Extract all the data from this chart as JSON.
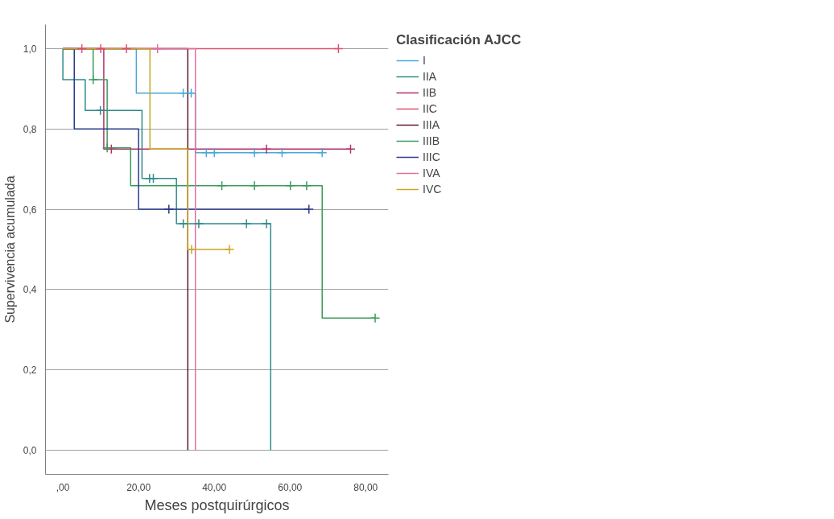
{
  "chart_data": {
    "type": "step",
    "xlabel": "Meses postquirúrgicos",
    "ylabel": "Supervivencia acumulada",
    "legend_title": "Clasificación AJCC",
    "legend": "right",
    "grid": "y",
    "xlim": [
      -4.6,
      86
    ],
    "ylim": [
      -0.06,
      1.06
    ],
    "xticks": [
      {
        "value": 0,
        "label": ",00"
      },
      {
        "value": 20,
        "label": "20,00"
      },
      {
        "value": 40,
        "label": "40,00"
      },
      {
        "value": 60,
        "label": "60,00"
      },
      {
        "value": 80,
        "label": "80,00"
      }
    ],
    "yticks": [
      {
        "value": 0,
        "label": "0,0"
      },
      {
        "value": 0.2,
        "label": "0,2"
      },
      {
        "value": 0.4,
        "label": "0,4"
      },
      {
        "value": 0.6,
        "label": "0,6"
      },
      {
        "value": 0.8,
        "label": "0,8"
      },
      {
        "value": 1,
        "label": "1,0"
      }
    ],
    "series": [
      {
        "name": "I",
        "color": "#4aa8d8",
        "x": [
          0,
          19.4,
          35,
          68.5
        ],
        "values": [
          1,
          0.889,
          0.741,
          0.741
        ]
      },
      {
        "name": "IIA",
        "color": "#2e8a8a",
        "x": [
          0,
          0,
          5.9,
          20.9,
          30,
          54.9
        ],
        "values": [
          1,
          0.923,
          0.846,
          0.677,
          0.564,
          0
        ]
      },
      {
        "name": "IIB",
        "color": "#b0306a",
        "x": [
          0,
          10.8,
          76
        ],
        "values": [
          1,
          0.75,
          0.75
        ]
      },
      {
        "name": "IIC",
        "color": "#e05070",
        "x": [
          0,
          72.8
        ],
        "values": [
          1,
          1
        ]
      },
      {
        "name": "IIIA",
        "color": "#5a1a30",
        "x": [
          0,
          33
        ],
        "values": [
          1,
          0
        ]
      },
      {
        "name": "IIIB",
        "color": "#3a9a5a",
        "x": [
          0,
          8,
          11.7,
          17.9,
          68.5,
          82.5
        ],
        "values": [
          1,
          0.923,
          0.753,
          0.659,
          0.329,
          0.329
        ]
      },
      {
        "name": "IIIC",
        "color": "#2a3a8a",
        "x": [
          0,
          3,
          20,
          65
        ],
        "values": [
          1,
          0.8,
          0.6,
          0.6
        ]
      },
      {
        "name": "IVA",
        "color": "#e070a0",
        "x": [
          0,
          35
        ],
        "values": [
          1,
          0
        ]
      },
      {
        "name": "IVC",
        "color": "#c8a820",
        "x": [
          0,
          23,
          33,
          44
        ],
        "values": [
          1,
          0.75,
          0.5,
          0.5
        ]
      },
      {
        "type": "scatter",
        "marker": "cross",
        "color": "#4aa8d8",
        "x": [
          31.8,
          33.9,
          37.9,
          40,
          50.6,
          57.9,
          68.5
        ],
        "values": [
          0.889,
          0.889,
          0.741,
          0.741,
          0.741,
          0.741,
          0.741
        ]
      },
      {
        "type": "scatter",
        "marker": "cross",
        "color": "#2e8a8a",
        "x": [
          9.9,
          22.9,
          23.9,
          31.8,
          35.9,
          48.5,
          53.8
        ],
        "values": [
          0.846,
          0.677,
          0.677,
          0.564,
          0.564,
          0.564,
          0.564
        ]
      },
      {
        "type": "scatter",
        "marker": "cross",
        "color": "#b0306a",
        "x": [
          12.8,
          53.8,
          76
        ],
        "values": [
          0.75,
          0.75,
          0.75
        ]
      },
      {
        "type": "scatter",
        "marker": "cross",
        "color": "#e05070",
        "x": [
          5,
          10,
          16.8,
          72.8
        ],
        "values": [
          1,
          1,
          1,
          1
        ]
      },
      {
        "type": "scatter",
        "marker": "cross",
        "color": "#3a9a5a",
        "x": [
          8,
          11.7,
          42,
          50.6,
          60.1,
          64.4,
          82.5
        ],
        "values": [
          0.923,
          0.753,
          0.659,
          0.659,
          0.659,
          0.659,
          0.329
        ]
      },
      {
        "type": "scatter",
        "marker": "cross",
        "color": "#2a3a8a",
        "x": [
          28,
          65
        ],
        "values": [
          0.6,
          0.6
        ]
      },
      {
        "type": "scatter",
        "marker": "cross",
        "color": "#e070a0",
        "x": [
          25
        ],
        "values": [
          1
        ]
      },
      {
        "type": "scatter",
        "marker": "cross",
        "color": "#c8a820",
        "x": [
          34,
          44
        ],
        "values": [
          0.5,
          0.5
        ]
      }
    ]
  }
}
